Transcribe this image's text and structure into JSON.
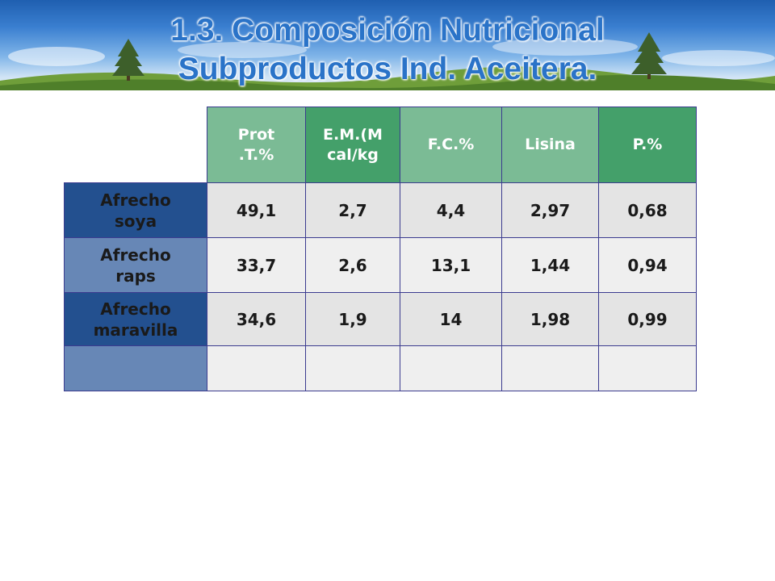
{
  "slide": {
    "title_line1": "1.3. Composición Nutricional",
    "title_line2": "Subproductos Ind. Aceitera."
  },
  "table": {
    "headers": [
      "Prot .T.%",
      "E.M.(M cal/kg",
      "F.C.%",
      "Lisina",
      "P.%"
    ],
    "rows": [
      {
        "label": "Afrecho soya",
        "values": [
          "49,1",
          "2,7",
          "4,4",
          "2,97",
          "0,68"
        ]
      },
      {
        "label": "Afrecho raps",
        "values": [
          "33,7",
          "2,6",
          "13,1",
          "1,44",
          "0,94"
        ]
      },
      {
        "label": "Afrecho maravilla",
        "values": [
          "34,6",
          "1,9",
          "14",
          "1,98",
          "0,99"
        ]
      },
      {
        "label": "",
        "values": [
          "",
          "",
          "",
          "",
          ""
        ]
      }
    ]
  },
  "colors": {
    "banner_sky": "#3a7fd0",
    "title_blue": "#2a73c8",
    "header_green_light": "#7bbb95",
    "header_green_dark": "#44a06a",
    "row_label_dark": "#23508f",
    "row_label_light": "#6787b6"
  }
}
